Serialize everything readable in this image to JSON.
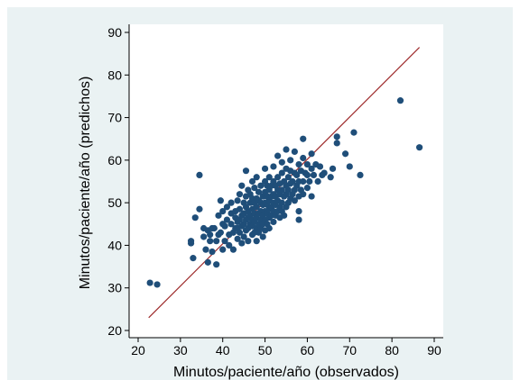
{
  "chart_data": {
    "type": "scatter",
    "xlabel": "Minutos/paciente/año (observados)",
    "ylabel": "Minutos/paciente/año (predichos)",
    "xlim": [
      20,
      90
    ],
    "ylim": [
      20,
      90
    ],
    "xticks": [
      "20",
      "30",
      "40",
      "50",
      "60",
      "70",
      "80",
      "90"
    ],
    "yticks": [
      "20",
      "30",
      "40",
      "50",
      "60",
      "70",
      "80",
      "90"
    ],
    "grid": false,
    "colors": {
      "points": "#1f4e79",
      "line": "#9e2a2b",
      "outer_bg": "#eaf2f3",
      "plot_bg": "#ffffff"
    },
    "fit_line": {
      "x": [
        22.5,
        86.5
      ],
      "y": [
        23,
        86.5
      ]
    },
    "points": [
      [
        22.8,
        31.2
      ],
      [
        24.5,
        30.8
      ],
      [
        32.5,
        40.5
      ],
      [
        32.5,
        41
      ],
      [
        33.5,
        46.5
      ],
      [
        33,
        37
      ],
      [
        34.5,
        56.5
      ],
      [
        34.5,
        48.5
      ],
      [
        35.5,
        44
      ],
      [
        35.5,
        42
      ],
      [
        36,
        39
      ],
      [
        36.5,
        36
      ],
      [
        36.5,
        43.5
      ],
      [
        37,
        41
      ],
      [
        37,
        42.5
      ],
      [
        37.5,
        44
      ],
      [
        37.5,
        38.5
      ],
      [
        38,
        44
      ],
      [
        38.5,
        35.5
      ],
      [
        38.5,
        41
      ],
      [
        39,
        42.5
      ],
      [
        39,
        47
      ],
      [
        39.5,
        50.5
      ],
      [
        39.5,
        43
      ],
      [
        40,
        45
      ],
      [
        40,
        48
      ],
      [
        40,
        39
      ],
      [
        40.5,
        41
      ],
      [
        40.5,
        44.5
      ],
      [
        41,
        49
      ],
      [
        41,
        46
      ],
      [
        41.5,
        42.5
      ],
      [
        41.5,
        40
      ],
      [
        42,
        45
      ],
      [
        42,
        47.5
      ],
      [
        42,
        50
      ],
      [
        42.5,
        43
      ],
      [
        42.5,
        39
      ],
      [
        43,
        44
      ],
      [
        43,
        46.5
      ],
      [
        43,
        48
      ],
      [
        43.5,
        41.5
      ],
      [
        43.5,
        44
      ],
      [
        43.5,
        50.5
      ],
      [
        43.5,
        45.5
      ],
      [
        44,
        43
      ],
      [
        44,
        46
      ],
      [
        44,
        48.5
      ],
      [
        44,
        52
      ],
      [
        44.5,
        40.5
      ],
      [
        44.5,
        44.5
      ],
      [
        44.5,
        47
      ],
      [
        44.5,
        54
      ],
      [
        45,
        42
      ],
      [
        45,
        45
      ],
      [
        45,
        47.5
      ],
      [
        45,
        50
      ],
      [
        45.5,
        57.5
      ],
      [
        45.5,
        43.5
      ],
      [
        45.5,
        46
      ],
      [
        45.5,
        49
      ],
      [
        45.5,
        51.5
      ],
      [
        46,
        44
      ],
      [
        46,
        46.5
      ],
      [
        46,
        48
      ],
      [
        46,
        53
      ],
      [
        46,
        41
      ],
      [
        46.5,
        45
      ],
      [
        46.5,
        47
      ],
      [
        46.5,
        50
      ],
      [
        46.5,
        52
      ],
      [
        47,
        42.5
      ],
      [
        47,
        44.5
      ],
      [
        47,
        46
      ],
      [
        47,
        48.5
      ],
      [
        47,
        51
      ],
      [
        47,
        55
      ],
      [
        47.5,
        43
      ],
      [
        47.5,
        45.5
      ],
      [
        47.5,
        47.5
      ],
      [
        47.5,
        50
      ],
      [
        47.5,
        53.5
      ],
      [
        48,
        41
      ],
      [
        48,
        44
      ],
      [
        48,
        46.5
      ],
      [
        48,
        49
      ],
      [
        48,
        51
      ],
      [
        48,
        56
      ],
      [
        48.5,
        43
      ],
      [
        48.5,
        45
      ],
      [
        48.5,
        47.5
      ],
      [
        48.5,
        50.5
      ],
      [
        48.5,
        52.5
      ],
      [
        49,
        44
      ],
      [
        49,
        46
      ],
      [
        49,
        48
      ],
      [
        49,
        50
      ],
      [
        49,
        54
      ],
      [
        49.5,
        42
      ],
      [
        49.5,
        45
      ],
      [
        49.5,
        47
      ],
      [
        49.5,
        49.5
      ],
      [
        49.5,
        51.5
      ],
      [
        50,
        43.5
      ],
      [
        50,
        46
      ],
      [
        50,
        48
      ],
      [
        50,
        50
      ],
      [
        50,
        52.5
      ],
      [
        50,
        55
      ],
      [
        50,
        58
      ],
      [
        50.5,
        45
      ],
      [
        50.5,
        47.5
      ],
      [
        50.5,
        49.5
      ],
      [
        50.5,
        51.5
      ],
      [
        50.5,
        54
      ],
      [
        51,
        44
      ],
      [
        51,
        46.5
      ],
      [
        51,
        48.5
      ],
      [
        51,
        50.5
      ],
      [
        51,
        53
      ],
      [
        51,
        56
      ],
      [
        51.5,
        47
      ],
      [
        51.5,
        49
      ],
      [
        51.5,
        51.5
      ],
      [
        51.5,
        54
      ],
      [
        52,
        45.5
      ],
      [
        52,
        48
      ],
      [
        52,
        50
      ],
      [
        52,
        52
      ],
      [
        52,
        55
      ],
      [
        52,
        58.5
      ],
      [
        52.5,
        47
      ],
      [
        52.5,
        49.5
      ],
      [
        52.5,
        51.5
      ],
      [
        52.5,
        54
      ],
      [
        53,
        48
      ],
      [
        53,
        50.5
      ],
      [
        53,
        53
      ],
      [
        53,
        56
      ],
      [
        53,
        61
      ],
      [
        53.5,
        46.5
      ],
      [
        53.5,
        49
      ],
      [
        53.5,
        52
      ],
      [
        53.5,
        54.5
      ],
      [
        54,
        48
      ],
      [
        54,
        50
      ],
      [
        54,
        53
      ],
      [
        54,
        57
      ],
      [
        54,
        59.5
      ],
      [
        54.5,
        47
      ],
      [
        54.5,
        51.5
      ],
      [
        54.5,
        55
      ],
      [
        55,
        49
      ],
      [
        55,
        52
      ],
      [
        55,
        54
      ],
      [
        55,
        58
      ],
      [
        55,
        62.5
      ],
      [
        55.5,
        50
      ],
      [
        55.5,
        53
      ],
      [
        55.5,
        56
      ],
      [
        56,
        51
      ],
      [
        56,
        54.5
      ],
      [
        56,
        57.5
      ],
      [
        56,
        60
      ],
      [
        56.5,
        52
      ],
      [
        56.5,
        55
      ],
      [
        57,
        50.5
      ],
      [
        57,
        53
      ],
      [
        57,
        57
      ],
      [
        57,
        62
      ],
      [
        57.5,
        54
      ],
      [
        57.5,
        56.5
      ],
      [
        58,
        48
      ],
      [
        58,
        51.5
      ],
      [
        58,
        55
      ],
      [
        58,
        59
      ],
      [
        58,
        46
      ],
      [
        58.5,
        53
      ],
      [
        58.5,
        57.5
      ],
      [
        59,
        52
      ],
      [
        59,
        55
      ],
      [
        59,
        60.5
      ],
      [
        59,
        65
      ],
      [
        59.5,
        57
      ],
      [
        60,
        53.5
      ],
      [
        60,
        56.5
      ],
      [
        60,
        59
      ],
      [
        60.5,
        55
      ],
      [
        61,
        51.5
      ],
      [
        61,
        58
      ],
      [
        61,
        61.5
      ],
      [
        61.5,
        56.5
      ],
      [
        62,
        59
      ],
      [
        62.5,
        55
      ],
      [
        63,
        58.5
      ],
      [
        63.5,
        56.5
      ],
      [
        64,
        57
      ],
      [
        65.5,
        56
      ],
      [
        66,
        58
      ],
      [
        67,
        65.5
      ],
      [
        67,
        64
      ],
      [
        69,
        61.5
      ],
      [
        70,
        58.5
      ],
      [
        71,
        66.5
      ],
      [
        72.5,
        56.5
      ],
      [
        82,
        74
      ],
      [
        86.5,
        63
      ]
    ]
  }
}
